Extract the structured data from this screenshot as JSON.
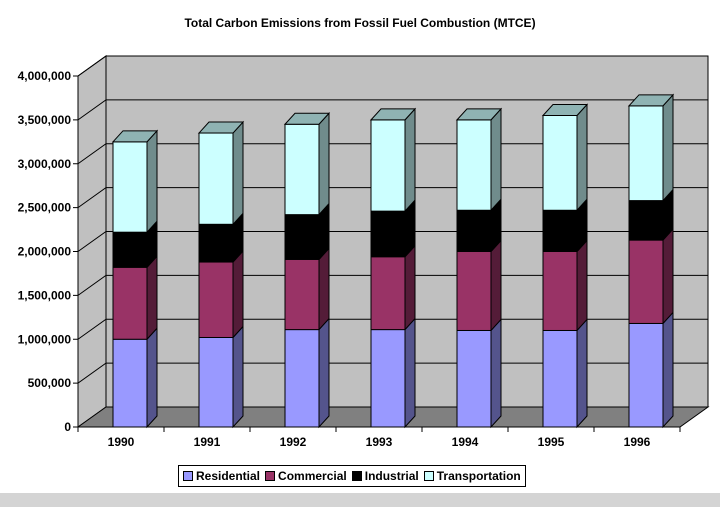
{
  "chart_data": {
    "type": "bar",
    "stacked": true,
    "three_d": true,
    "title": "Total Carbon Emissions from Fossil Fuel Combustion (MTCE)",
    "xlabel": "",
    "ylabel": "",
    "categories": [
      "1990",
      "1991",
      "1992",
      "1993",
      "1994",
      "1995",
      "1996"
    ],
    "series": [
      {
        "name": "Residential",
        "color": "#9999ff",
        "values": [
          1000000,
          1020000,
          1110000,
          1110000,
          1100000,
          1100000,
          1180000
        ]
      },
      {
        "name": "Commercial",
        "color": "#993366",
        "values": [
          820000,
          860000,
          800000,
          830000,
          900000,
          900000,
          950000
        ]
      },
      {
        "name": "Industrial",
        "color": "#000000",
        "values": [
          400000,
          430000,
          510000,
          520000,
          470000,
          470000,
          450000
        ]
      },
      {
        "name": "Transportation",
        "color": "#ccffff",
        "values": [
          1030000,
          1040000,
          1030000,
          1040000,
          1030000,
          1080000,
          1080000
        ]
      }
    ],
    "ylim": [
      0,
      4000000
    ],
    "yticks": [
      0,
      500000,
      1000000,
      1500000,
      2000000,
      2500000,
      3000000,
      3500000,
      4000000
    ],
    "ytick_labels": [
      "0",
      "500,000",
      "1,000,000",
      "1,500,000",
      "2,000,000",
      "2,500,000",
      "3,000,000",
      "3,500,000",
      "4,000,000"
    ],
    "grid": true,
    "legend_position": "bottom"
  },
  "colors": {
    "wall": "#c0c0c0",
    "floor": "#808080",
    "gridline": "#000000"
  }
}
